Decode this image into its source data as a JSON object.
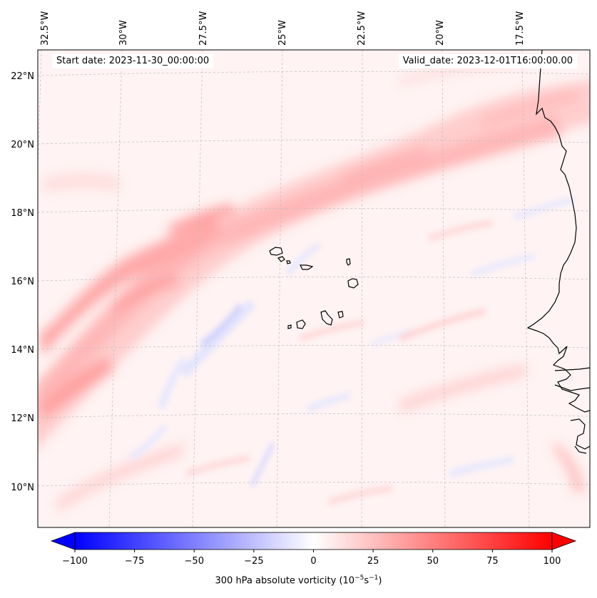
{
  "map": {
    "start_date": "Start date: 2023-11-30_00:00:00",
    "valid_date": "Valid_date: 2023-12-01T16:00:00.00",
    "lon_labels": [
      "32.5°W",
      "30°W",
      "27.5°W",
      "25°W",
      "22.5°W",
      "20°W",
      "17.5°W"
    ],
    "lat_labels": [
      "22°N",
      "20°N",
      "18°N",
      "16°N",
      "14°N",
      "12°N",
      "10°N"
    ],
    "field": "300 hPa absolute vorticity",
    "gridlines": true
  },
  "colorbar": {
    "title": "300 hPa absolute vorticity (10",
    "title_exp1": "−5",
    "title_mid": "s",
    "title_exp2": "−1",
    "title_end": ")",
    "ticks": [
      "−100",
      "−75",
      "−50",
      "−25",
      "0",
      "25",
      "50",
      "75",
      "100"
    ],
    "min": -100,
    "max": 100,
    "colormap": "bwr",
    "low_color": "#0000ff",
    "mid_color": "#ffffff",
    "high_color": "#ff0000",
    "extend": "both"
  }
}
